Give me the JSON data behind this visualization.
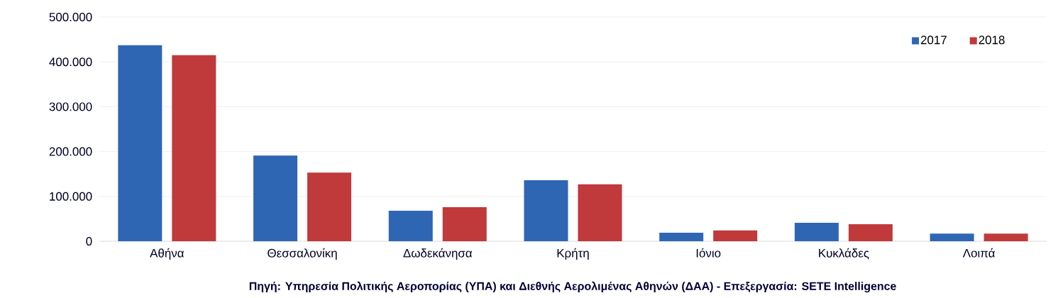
{
  "chart_data": {
    "type": "bar",
    "categories": [
      "Αθήνα",
      "Θεσσαλονίκη",
      "Δωδεκάνησα",
      "Κρήτη",
      "Ιόνιο",
      "Κυκλάδες",
      "Λοιπά"
    ],
    "series": [
      {
        "name": "2017",
        "color": "#2e66b4",
        "values": [
          437000,
          191000,
          68000,
          136000,
          19000,
          41000,
          17000
        ]
      },
      {
        "name": "2018",
        "color": "#c0393b",
        "values": [
          415000,
          153000,
          76000,
          127000,
          24000,
          38000,
          17000
        ]
      }
    ],
    "ylim": [
      0,
      500000
    ],
    "yticks": [
      {
        "value": 0,
        "label": "0"
      },
      {
        "value": 100000,
        "label": "100.000"
      },
      {
        "value": 200000,
        "label": "200.000"
      },
      {
        "value": 300000,
        "label": "300.000"
      },
      {
        "value": 400000,
        "label": "400.000"
      },
      {
        "value": 500000,
        "label": "500.000"
      }
    ],
    "grid": "y",
    "legend": "top right",
    "annotations": [
      "Πηγή: Υπηρεσία Πολιτικής Αεροπορίας (ΥΠΑ)  και Διεθνής  Αερολιμένας Αθηνών (ΔΑΑ) - Επεξεργασία: SETE Intelligence"
    ]
  }
}
